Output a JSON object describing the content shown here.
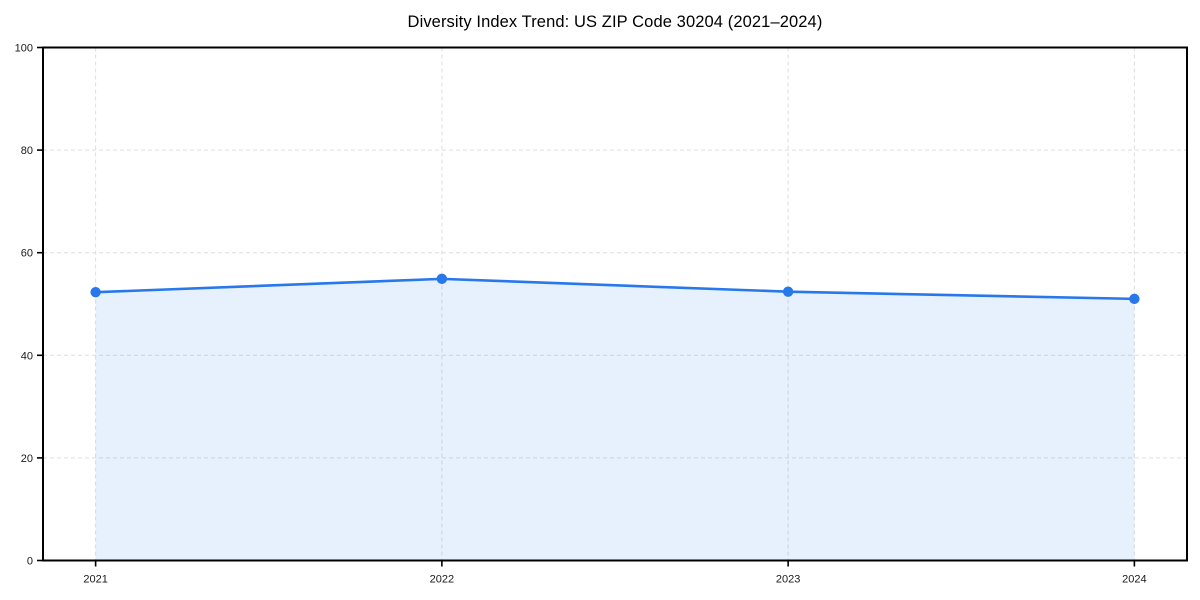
{
  "chart_data": {
    "type": "line",
    "title": "Diversity Index Trend: US ZIP Code 30204 (2021–2024)",
    "x": [
      "2021",
      "2022",
      "2023",
      "2024"
    ],
    "series": [
      {
        "name": "Diversity Index",
        "values": [
          52.3,
          54.9,
          52.4,
          51.0
        ]
      }
    ],
    "ylim": [
      0,
      100
    ],
    "yticks": [
      0,
      20,
      40,
      60,
      80,
      100
    ],
    "grid": true,
    "grid_style": "dashed",
    "area_fill": true,
    "legend_position": "none",
    "xlabel": "",
    "ylabel": "",
    "colors": {
      "line": "#2878eb",
      "marker": "#2878eb",
      "area": "#2878eb",
      "area_opacity": 0.11,
      "grid": "#dedede",
      "spine": "#000000",
      "tick_label": "#1a1a1a",
      "title": "#000000",
      "background": "#ffffff"
    }
  }
}
